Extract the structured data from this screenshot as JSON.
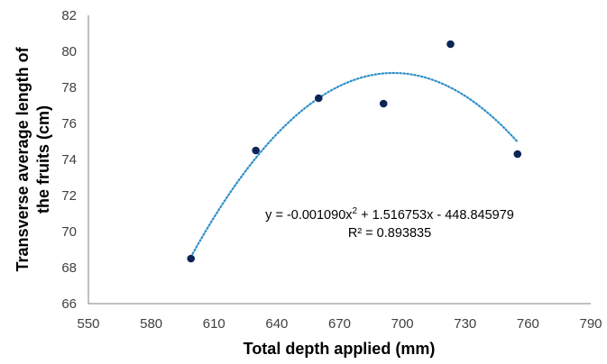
{
  "chart_data": {
    "type": "scatter",
    "xlabel": "Total depth applied (mm)",
    "ylabel_lines": [
      "Transverse average length of",
      "the fruits (cm)"
    ],
    "xlim": [
      550,
      790
    ],
    "ylim": [
      66,
      82
    ],
    "xticks": [
      550,
      580,
      610,
      640,
      670,
      700,
      730,
      760,
      790
    ],
    "yticks": [
      66,
      68,
      70,
      72,
      74,
      76,
      78,
      80,
      82
    ],
    "grid": false,
    "series": [
      {
        "points": [
          {
            "x": 599,
            "y": 68.5
          },
          {
            "x": 630,
            "y": 74.5
          },
          {
            "x": 660,
            "y": 77.4
          },
          {
            "x": 691,
            "y": 77.1
          },
          {
            "x": 723,
            "y": 80.4
          },
          {
            "x": 755,
            "y": 74.3
          }
        ],
        "color": "#0d2456"
      }
    ],
    "trendline": {
      "kind": "polynomial-2",
      "coefficients": {
        "a": -0.00109,
        "b": 1.516753,
        "c": -448.845979
      },
      "x_range": [
        599,
        755
      ],
      "color": "#2e8fc8",
      "style": "dotted"
    },
    "equation": {
      "line1_prefix": "y = -0.001090x",
      "line1_sup": "2",
      "line1_suffix": " + 1.516753x - 448.845979",
      "line2": "R² = 0.893835"
    }
  },
  "colors": {
    "axis": "#808080",
    "tick_text": "#404040",
    "marker": "#0d2456",
    "trend": "#2e8fc8"
  }
}
